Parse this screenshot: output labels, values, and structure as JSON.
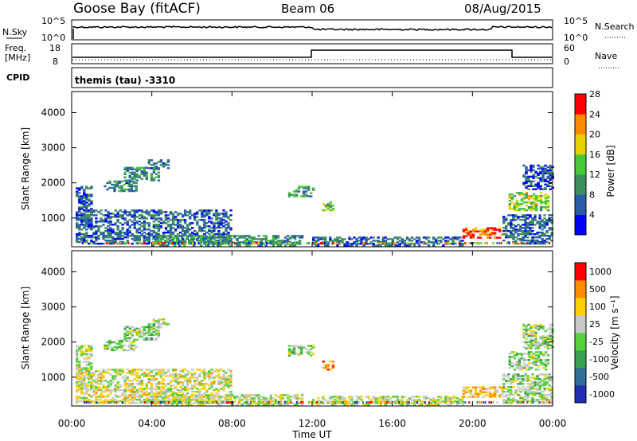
{
  "header": {
    "station": "Goose Bay (fitACF)",
    "beam": "Beam 06",
    "date": "08/Aug/2015"
  },
  "noise_panel": {
    "left_label": "N.Sky",
    "right_label": "N.Search",
    "ticks_left": [
      "10^5",
      "10^0"
    ],
    "ticks_right": [
      "10^5",
      "10^0"
    ]
  },
  "freq_panel": {
    "left_label_1": "Freq.",
    "left_label_2": "[MHz]",
    "right_label": "Nave",
    "ticks_left": [
      "18",
      "8"
    ],
    "ticks_right": [
      "60",
      "0"
    ]
  },
  "cpid": {
    "label": "CPID",
    "value": "themis (tau) -3310"
  },
  "time_axis": {
    "label": "Time UT",
    "ticks": [
      "00:00",
      "04:00",
      "08:00",
      "12:00",
      "16:00",
      "20:00",
      "00:00"
    ]
  },
  "chart_data": [
    {
      "type": "heatmap",
      "name": "power",
      "ylabel": "Slant Range [km]",
      "yticks": [
        "1000",
        "2000",
        "3000",
        "4000"
      ],
      "ylim": [
        180,
        4600
      ],
      "xlim_hours": [
        0,
        24
      ],
      "colorbar_label": "Power [dB]",
      "colorbar_ticks": [
        "4",
        "8",
        "12",
        "16",
        "20",
        "24",
        "28"
      ],
      "colors": [
        "#0000ff",
        "#2a5caa",
        "#3e8f60",
        "#46c83c",
        "#e6d200",
        "#ff8c00",
        "#ff0000"
      ],
      "regions": [
        {
          "t": [
            0.2,
            1.0
          ],
          "r": [
            700,
            1900
          ],
          "level": 0.2
        },
        {
          "t": [
            1.6,
            3.2
          ],
          "r": [
            1750,
            2050
          ],
          "level": 0.3
        },
        {
          "t": [
            2.6,
            4.4
          ],
          "r": [
            2050,
            2450
          ],
          "level": 0.35
        },
        {
          "t": [
            3.8,
            4.8
          ],
          "r": [
            2400,
            2650
          ],
          "level": 0.3
        },
        {
          "t": [
            0.2,
            8.0
          ],
          "r": [
            250,
            1200
          ],
          "level": 0.25
        },
        {
          "t": [
            4.0,
            11.5
          ],
          "r": [
            200,
            500
          ],
          "level": 0.35
        },
        {
          "t": [
            10.8,
            12.0
          ],
          "r": [
            1600,
            1900
          ],
          "level": 0.4
        },
        {
          "t": [
            12.5,
            13.0
          ],
          "r": [
            1200,
            1450
          ],
          "level": 0.5
        },
        {
          "t": [
            12.0,
            19.5
          ],
          "r": [
            200,
            450
          ],
          "level": 0.25
        },
        {
          "t": [
            19.5,
            21.5
          ],
          "r": [
            420,
            720
          ],
          "level": 0.85
        },
        {
          "t": [
            21.8,
            23.8
          ],
          "r": [
            1200,
            1700
          ],
          "level": 0.55
        },
        {
          "t": [
            21.5,
            24.0
          ],
          "r": [
            250,
            1100
          ],
          "level": 0.25
        },
        {
          "t": [
            22.5,
            24.0
          ],
          "r": [
            1800,
            2500
          ],
          "level": 0.2
        }
      ]
    },
    {
      "type": "heatmap",
      "name": "velocity",
      "ylabel": "Slant Range [km]",
      "yticks": [
        "1000",
        "2000",
        "3000",
        "4000"
      ],
      "ylim": [
        180,
        4600
      ],
      "xlim_hours": [
        0,
        24
      ],
      "colorbar_label": "Velocity [m s⁻¹]",
      "colorbar_ticks": [
        "1000",
        "500",
        "100",
        "25",
        "-25",
        "-100",
        "-500",
        "-1000"
      ],
      "colors": [
        "#2030b0",
        "#2f6f9a",
        "#3a9f50",
        "#56d03c",
        "#c8c8c8",
        "#ffd000",
        "#ff8c00",
        "#ff0000"
      ],
      "regions": [
        {
          "t": [
            0.2,
            1.0
          ],
          "r": [
            700,
            1900
          ],
          "level": 0.55
        },
        {
          "t": [
            1.6,
            3.2
          ],
          "r": [
            1750,
            2050
          ],
          "level": 0.5
        },
        {
          "t": [
            2.6,
            4.4
          ],
          "r": [
            2050,
            2450
          ],
          "level": 0.5
        },
        {
          "t": [
            3.8,
            4.8
          ],
          "r": [
            2400,
            2650
          ],
          "level": 0.5
        },
        {
          "t": [
            0.2,
            8.0
          ],
          "r": [
            250,
            1200
          ],
          "level": 0.6
        },
        {
          "t": [
            4.0,
            11.5
          ],
          "r": [
            200,
            500
          ],
          "level": 0.55
        },
        {
          "t": [
            10.8,
            12.0
          ],
          "r": [
            1600,
            1900
          ],
          "level": 0.5
        },
        {
          "t": [
            12.5,
            13.0
          ],
          "r": [
            1200,
            1450
          ],
          "level": 0.85
        },
        {
          "t": [
            12.0,
            19.5
          ],
          "r": [
            200,
            450
          ],
          "level": 0.55
        },
        {
          "t": [
            19.5,
            21.5
          ],
          "r": [
            420,
            720
          ],
          "level": 0.7
        },
        {
          "t": [
            21.8,
            23.8
          ],
          "r": [
            1200,
            1700
          ],
          "level": 0.5
        },
        {
          "t": [
            21.5,
            24.0
          ],
          "r": [
            250,
            1100
          ],
          "level": 0.5
        },
        {
          "t": [
            22.5,
            24.0
          ],
          "r": [
            1800,
            2500
          ],
          "level": 0.5
        }
      ]
    }
  ]
}
